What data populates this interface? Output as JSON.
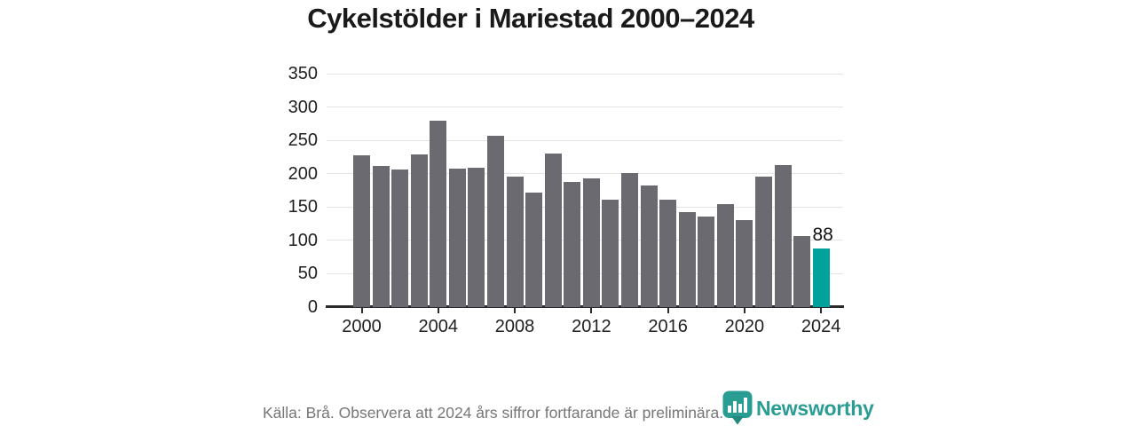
{
  "title": "Cykelstölder i Mariestad 2000–2024",
  "footer": {
    "source_note": "Källa: Brå. Observera att 2024 års siffror fortfarande är preliminära.",
    "brand": "Newsworthy"
  },
  "colors": {
    "bar_default": "#6a6a70",
    "bar_highlight": "#00a29b",
    "gridline": "#e4e4e4",
    "axis_line": "#2b2b2b",
    "tick_label": "#1f1f1f",
    "title_text": "#1a1a1a",
    "footer_text": "#767676",
    "brand_teal": "#2a9d92",
    "background": "#ffffff"
  },
  "chart_data": {
    "type": "bar",
    "title": "Cykelstölder i Mariestad 2000–2024",
    "x": [
      2000,
      2001,
      2002,
      2003,
      2004,
      2005,
      2006,
      2007,
      2008,
      2009,
      2010,
      2011,
      2012,
      2013,
      2014,
      2015,
      2016,
      2017,
      2018,
      2019,
      2020,
      2021,
      2022,
      2023,
      2024
    ],
    "values": [
      227,
      211,
      206,
      229,
      279,
      208,
      209,
      257,
      196,
      172,
      230,
      188,
      193,
      161,
      201,
      182,
      161,
      142,
      136,
      154,
      130,
      196,
      213,
      106,
      88
    ],
    "highlight_index": 24,
    "annotations": [
      {
        "x": 2024,
        "text": "88"
      }
    ],
    "xlabel": "",
    "ylabel": "",
    "ylim": [
      0,
      350
    ],
    "y_ticks": [
      0,
      50,
      100,
      150,
      200,
      250,
      300,
      350
    ],
    "x_ticks": [
      2000,
      2004,
      2008,
      2012,
      2016,
      2020,
      2024
    ],
    "grid": "horizontal",
    "legend": "none"
  }
}
